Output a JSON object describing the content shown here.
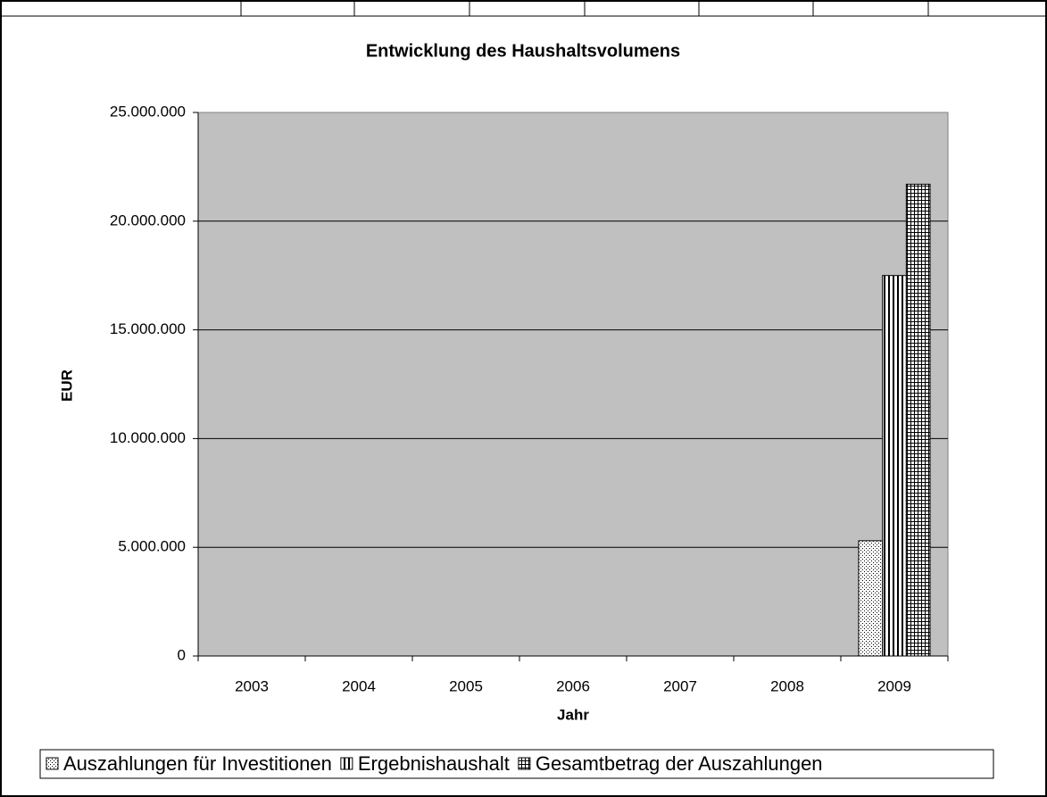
{
  "chart_data": {
    "type": "bar",
    "title": "Entwicklung des Haushaltsvolumens",
    "x_label": "Jahr",
    "y_label": "EUR",
    "categories": [
      "2003",
      "2004",
      "2005",
      "2006",
      "2007",
      "2008",
      "2009"
    ],
    "series": [
      {
        "name": "Auszahlungen für Investitionen",
        "color": "#000000",
        "values": [
          null,
          null,
          null,
          null,
          null,
          null,
          5300000
        ]
      },
      {
        "name": "Ergebnishaushalt",
        "color": "#000000",
        "values": [
          null,
          null,
          null,
          null,
          null,
          null,
          17500000
        ]
      },
      {
        "name": "Gesamtbetrag der Auszahlungen",
        "color": "#000000",
        "values": [
          null,
          null,
          null,
          null,
          null,
          null,
          21700000
        ]
      }
    ],
    "ylim": [
      0,
      25000000
    ],
    "yticks": [
      0,
      {
        "value": 5000000,
        "label": "5.000.000"
      },
      {
        "value": 10000000,
        "label": "10.000.000"
      },
      {
        "value": 15000000,
        "label": "15.000.000"
      },
      {
        "value": 20000000,
        "label": "20.000.000"
      },
      {
        "value": 25000000,
        "label": "25.000.000"
      }
    ],
    "grid": true
  }
}
